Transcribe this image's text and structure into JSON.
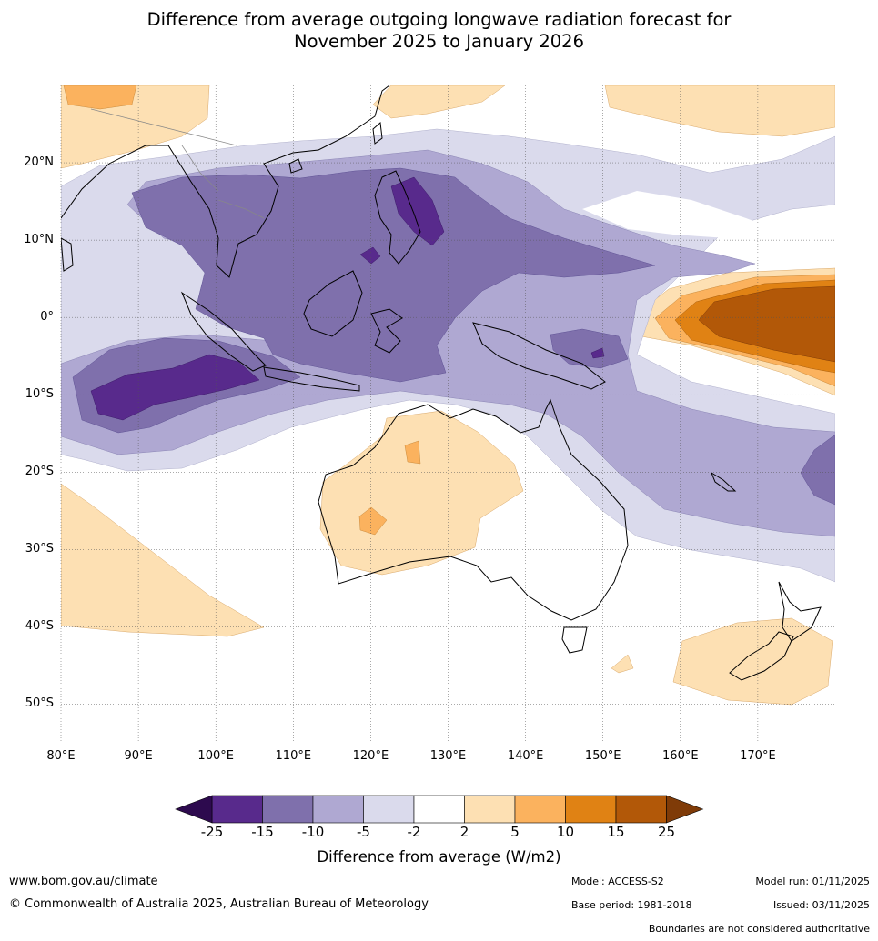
{
  "title": {
    "line1": "Difference from average outgoing longwave radiation forecast for",
    "line2": "November 2025 to January 2026"
  },
  "map": {
    "lat_labels": [
      "20°N",
      "10°N",
      "0°",
      "10°S",
      "20°S",
      "30°S",
      "40°S",
      "50°S"
    ],
    "lat_values": [
      20,
      10,
      0,
      -10,
      -20,
      -30,
      -40,
      -50
    ],
    "lon_labels": [
      "80°E",
      "90°E",
      "100°E",
      "110°E",
      "120°E",
      "130°E",
      "140°E",
      "150°E",
      "160°E",
      "170°E"
    ],
    "lon_values": [
      80,
      90,
      100,
      110,
      120,
      130,
      140,
      150,
      160,
      170
    ],
    "extent": {
      "lon_min": 80,
      "lon_max": 180,
      "lat_min": -55,
      "lat_max": 30
    }
  },
  "colorbar": {
    "ticks": [
      "-25",
      "-15",
      "-10",
      "-5",
      "-2",
      "2",
      "5",
      "10",
      "15",
      "25"
    ],
    "colors": [
      "#582a8c",
      "#7f70ac",
      "#afa8d2",
      "#dadaec",
      "#ffffff",
      "#fde0b3",
      "#fbb25e",
      "#e08214",
      "#b25808"
    ],
    "under_color": "#2d0a4e",
    "over_color": "#7f3b08",
    "label": "Difference from average (W/m2)"
  },
  "footer": {
    "website": "www.bom.gov.au/climate",
    "copyright": "© Commonwealth of Australia 2025, Australian Bureau of Meteorology",
    "model": "Model: ACCESS-S2",
    "base_period": "Base period: 1981-2018",
    "model_run": "Model run: 01/11/2025",
    "issued": "Issued: 03/11/2025",
    "disclaimer": "Boundaries are not considered authoritative"
  }
}
